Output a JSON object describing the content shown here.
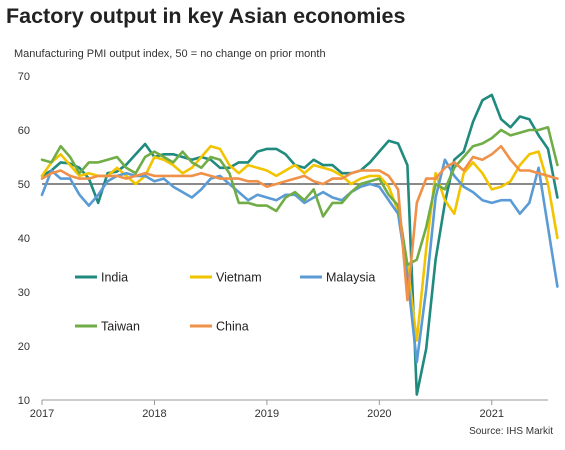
{
  "title": "Factory output in key Asian economies",
  "source": "Source: IHS Markit",
  "chart_data": {
    "type": "line",
    "ylabel": "Manufacturing PMI output index, 50 = no change on prior month",
    "ylim": [
      10,
      70
    ],
    "yticks": [
      10,
      20,
      30,
      40,
      50,
      60,
      70
    ],
    "xlim": [
      2017.0,
      2021.5
    ],
    "xticks": [
      2017,
      2018,
      2019,
      2020,
      2021
    ],
    "reference_line": 50,
    "grid": false,
    "series": [
      {
        "name": "India",
        "color": "#1f8a7d",
        "start": 2017.0,
        "step": 0.0833333,
        "values": [
          51.5,
          52.5,
          54.0,
          53.8,
          53.0,
          51.0,
          46.5,
          52.0,
          52.3,
          53.6,
          55.5,
          57.4,
          55.0,
          55.5,
          55.5,
          55.0,
          54.5,
          55.0,
          54.5,
          53.0,
          53.0,
          54.0,
          54.0,
          56.0,
          56.5,
          56.5,
          55.5,
          53.5,
          53.0,
          54.5,
          53.5,
          53.5,
          52.0,
          52.0,
          52.5,
          54.0,
          56.0,
          58.0,
          57.5,
          53.5,
          11.0,
          19.5,
          36.0,
          46.5,
          54.5,
          56.0,
          61.5,
          65.5,
          66.5,
          62.0,
          60.5,
          62.5,
          62.0,
          59.0,
          56.5,
          47.5
        ]
      },
      {
        "name": "Vietnam",
        "color": "#f2c400",
        "start": 2017.0,
        "step": 0.0833333,
        "values": [
          51.5,
          54.0,
          55.5,
          53.5,
          51.5,
          52.0,
          51.5,
          51.5,
          53.0,
          51.5,
          50.0,
          51.5,
          55.0,
          54.5,
          53.5,
          52.0,
          53.0,
          55.0,
          57.0,
          56.5,
          53.5,
          52.0,
          53.5,
          53.0,
          52.5,
          51.5,
          52.5,
          53.5,
          52.0,
          53.5,
          53.0,
          52.5,
          51.5,
          50.0,
          51.0,
          51.5,
          51.5,
          49.5,
          45.0,
          35.0,
          21.0,
          38.0,
          52.0,
          47.0,
          44.5,
          52.0,
          54.0,
          52.0,
          49.0,
          49.5,
          50.5,
          53.5,
          55.5,
          56.0,
          50.0,
          40.0
        ]
      },
      {
        "name": "Malaysia",
        "color": "#5b9bd5",
        "start": 2017.0,
        "step": 0.0833333,
        "values": [
          48.0,
          52.5,
          51.0,
          51.0,
          48.0,
          46.0,
          48.0,
          50.5,
          51.5,
          52.0,
          51.5,
          51.5,
          50.5,
          51.0,
          49.5,
          48.5,
          47.5,
          49.0,
          51.0,
          51.5,
          50.0,
          48.5,
          47.0,
          48.0,
          47.5,
          47.0,
          48.0,
          48.0,
          46.5,
          47.5,
          48.5,
          47.5,
          47.0,
          48.5,
          49.5,
          50.0,
          49.5,
          47.0,
          44.5,
          33.0,
          17.0,
          30.5,
          47.5,
          54.5,
          51.5,
          49.5,
          48.5,
          47.0,
          46.5,
          47.0,
          47.0,
          44.5,
          46.5,
          53.0,
          42.0,
          31.0
        ]
      },
      {
        "name": "Taiwan",
        "color": "#70ad47",
        "start": 2017.0,
        "step": 0.0833333,
        "values": [
          54.5,
          54.0,
          57.0,
          55.0,
          52.0,
          54.0,
          54.0,
          54.5,
          55.0,
          53.0,
          52.0,
          55.0,
          56.0,
          55.0,
          54.0,
          56.0,
          54.0,
          53.0,
          55.0,
          54.5,
          52.0,
          46.5,
          46.5,
          46.0,
          46.0,
          45.0,
          47.5,
          48.5,
          47.0,
          49.0,
          44.0,
          46.5,
          46.5,
          48.5,
          50.0,
          50.5,
          51.0,
          48.0,
          46.0,
          35.0,
          36.0,
          42.0,
          50.0,
          49.0,
          53.0,
          55.0,
          57.0,
          57.5,
          58.5,
          60.0,
          59.0,
          59.5,
          60.0,
          60.0,
          60.5,
          53.5
        ]
      },
      {
        "name": "China",
        "color": "#f0914a",
        "start": 2017.0,
        "step": 0.0833333,
        "values": [
          51.0,
          52.0,
          52.5,
          51.5,
          51.0,
          51.0,
          51.5,
          51.5,
          51.5,
          51.0,
          51.5,
          52.0,
          51.5,
          51.5,
          51.5,
          51.5,
          51.5,
          52.0,
          51.5,
          51.0,
          51.0,
          51.0,
          50.5,
          50.5,
          49.5,
          50.0,
          50.5,
          51.0,
          51.5,
          50.5,
          50.0,
          51.0,
          51.0,
          52.0,
          52.5,
          52.5,
          52.5,
          51.5,
          49.0,
          28.5,
          46.5,
          51.0,
          51.0,
          53.0,
          54.0,
          52.5,
          55.0,
          54.5,
          55.5,
          57.0,
          54.5,
          52.5,
          52.5,
          52.0,
          51.5,
          51.0
        ]
      }
    ],
    "legend": {
      "placement": "inside-lower-left",
      "entries": [
        "India",
        "Vietnam",
        "Malaysia",
        "Taiwan",
        "China"
      ]
    }
  }
}
